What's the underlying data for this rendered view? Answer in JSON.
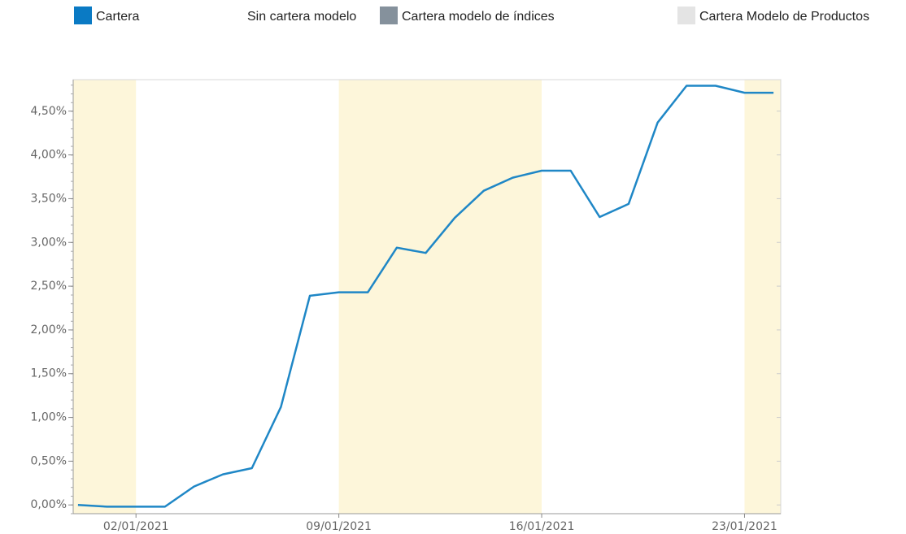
{
  "chart_data": {
    "type": "line",
    "legend": [
      {
        "name": "Cartera",
        "color": "#0a7ac4"
      },
      {
        "name": "Sin cartera modelo",
        "color": "#ffffff"
      },
      {
        "name": "Cartera modelo de índices",
        "color": "#85919c"
      },
      {
        "name": "Cartera Modelo de Productos",
        "color": "#e4e4e4"
      }
    ],
    "x": [
      "2020-12-31",
      "2021-01-01",
      "2021-01-02",
      "2021-01-03",
      "2021-01-04",
      "2021-01-05",
      "2021-01-06",
      "2021-01-07",
      "2021-01-08",
      "2021-01-09",
      "2021-01-10",
      "2021-01-11",
      "2021-01-12",
      "2021-01-13",
      "2021-01-14",
      "2021-01-15",
      "2021-01-16",
      "2021-01-17",
      "2021-01-18",
      "2021-01-19",
      "2021-01-20",
      "2021-01-21",
      "2021-01-22",
      "2021-01-23",
      "2021-01-24"
    ],
    "series": [
      {
        "name": "Cartera",
        "color": "#1f87c6",
        "values": [
          0.0,
          -0.02,
          -0.02,
          -0.02,
          0.21,
          0.35,
          0.42,
          1.12,
          2.39,
          2.43,
          2.43,
          2.94,
          2.88,
          3.28,
          3.59,
          3.74,
          3.82,
          3.82,
          3.29,
          3.44,
          4.37,
          4.79,
          4.79,
          4.71,
          4.71
        ]
      }
    ],
    "bands": [
      {
        "start": "2020-12-30T20:00",
        "end": "2021-01-02"
      },
      {
        "start": "2021-01-09",
        "end": "2021-01-16"
      },
      {
        "start": "2021-01-23",
        "end": "2021-01-24T06:00"
      }
    ],
    "band_color": "#fdf6da",
    "xlim": [
      "2020-12-30T20:00",
      "2021-01-24T06:00"
    ],
    "xticks": [
      {
        "value": "2021-01-02",
        "label": "02/01/2021"
      },
      {
        "value": "2021-01-09",
        "label": "09/01/2021"
      },
      {
        "value": "2021-01-16",
        "label": "16/01/2021"
      },
      {
        "value": "2021-01-23",
        "label": "23/01/2021"
      }
    ],
    "ylim": [
      -0.1,
      4.86
    ],
    "yticks": [
      {
        "value": 0,
        "label": "0,00%"
      },
      {
        "value": 0.5,
        "label": "0,50%"
      },
      {
        "value": 1,
        "label": "1,00%"
      },
      {
        "value": 1.5,
        "label": "1,50%"
      },
      {
        "value": 2,
        "label": "2,00%"
      },
      {
        "value": 2.5,
        "label": "2,50%"
      },
      {
        "value": 3,
        "label": "3,00%"
      },
      {
        "value": 3.5,
        "label": "3,50%"
      },
      {
        "value": 4,
        "label": "4,00%"
      },
      {
        "value": 4.5,
        "label": "4,50%"
      }
    ],
    "grid": false
  }
}
